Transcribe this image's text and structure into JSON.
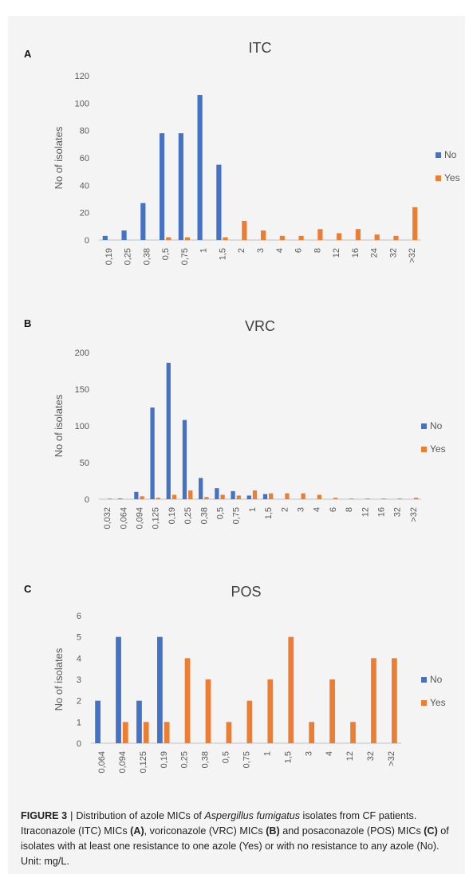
{
  "colors": {
    "no": "#4472c4",
    "yes": "#ed7d31",
    "axis": "#bfbfbf",
    "text": "#595959",
    "title": "#404040"
  },
  "chart_data": [
    {
      "panel": "A",
      "title": "ITC",
      "type": "bar",
      "ylabel": "No of isolates",
      "xlabel": "",
      "ylim": [
        0,
        120
      ],
      "yticks": [
        0,
        20,
        40,
        60,
        80,
        100,
        120
      ],
      "legend_position": "right",
      "categories": [
        "0,19",
        "0,25",
        "0,38",
        "0,5",
        "0,75",
        "1",
        "1,5",
        "2",
        "3",
        "4",
        "6",
        "8",
        "12",
        "16",
        "24",
        "32",
        ">32"
      ],
      "series": [
        {
          "name": "No",
          "values": [
            3,
            7,
            27,
            78,
            78,
            106,
            55,
            0,
            0,
            0,
            0,
            0,
            0,
            0,
            0,
            0,
            0
          ]
        },
        {
          "name": "Yes",
          "values": [
            0,
            0,
            0,
            2,
            2,
            0,
            2,
            14,
            7,
            3,
            3,
            8,
            5,
            8,
            4,
            3,
            24
          ]
        }
      ]
    },
    {
      "panel": "B",
      "title": "VRC",
      "type": "bar",
      "ylabel": "No of isolates",
      "xlabel": "",
      "ylim": [
        0,
        200
      ],
      "yticks": [
        0,
        50,
        100,
        150,
        200
      ],
      "legend_position": "right",
      "categories": [
        "0,032",
        "0,064",
        "0,094",
        "0,125",
        "0,19",
        "0,25",
        "0,38",
        "0,5",
        "0,75",
        "1",
        "1,5",
        "2",
        "3",
        "4",
        "6",
        "8",
        "12",
        "16",
        "32",
        ">32"
      ],
      "series": [
        {
          "name": "No",
          "values": [
            0,
            1,
            10,
            125,
            186,
            108,
            29,
            15,
            11,
            5,
            7,
            0,
            0,
            0,
            0,
            0,
            0,
            0,
            0,
            0
          ]
        },
        {
          "name": "Yes",
          "values": [
            1,
            0,
            4,
            2,
            6,
            12,
            3,
            6,
            5,
            12,
            8,
            8,
            8,
            6,
            2,
            1,
            1,
            1,
            1,
            2
          ]
        }
      ]
    },
    {
      "panel": "C",
      "title": "POS",
      "type": "bar",
      "ylabel": "No of isolates",
      "xlabel": "",
      "ylim": [
        0,
        6
      ],
      "yticks": [
        0,
        1,
        2,
        3,
        4,
        5,
        6
      ],
      "legend_position": "right",
      "categories": [
        "0,064",
        "0,094",
        "0,125",
        "0,19",
        "0,25",
        "0,38",
        "0,5",
        "0,75",
        "1",
        "1,5",
        "3",
        "4",
        "12",
        "32",
        ">32"
      ],
      "series": [
        {
          "name": "No",
          "values": [
            2,
            5,
            2,
            5,
            0,
            0,
            0,
            0,
            0,
            0,
            0,
            0,
            0,
            0,
            0
          ]
        },
        {
          "name": "Yes",
          "values": [
            0,
            1,
            1,
            1,
            4,
            3,
            1,
            2,
            3,
            5,
            1,
            3,
            1,
            4,
            4
          ]
        }
      ]
    }
  ],
  "caption": {
    "figure_label": "FIGURE 3",
    "separator": "|",
    "text_1": "Distribution of azole MICs of ",
    "species": "Aspergillus fumigatus",
    "text_2": " isolates from CF patients. Itraconazole (ITC) MICs ",
    "ref_a": "(A)",
    "text_3": ", voriconazole (VRC) MICs ",
    "ref_b": "(B)",
    "text_4": " and posaconazole (POS) MICs ",
    "ref_c": "(C)",
    "text_5": " of isolates with at least one resistance to one azole (Yes) or with no resistance to any azole (No). Unit: mg/L."
  }
}
